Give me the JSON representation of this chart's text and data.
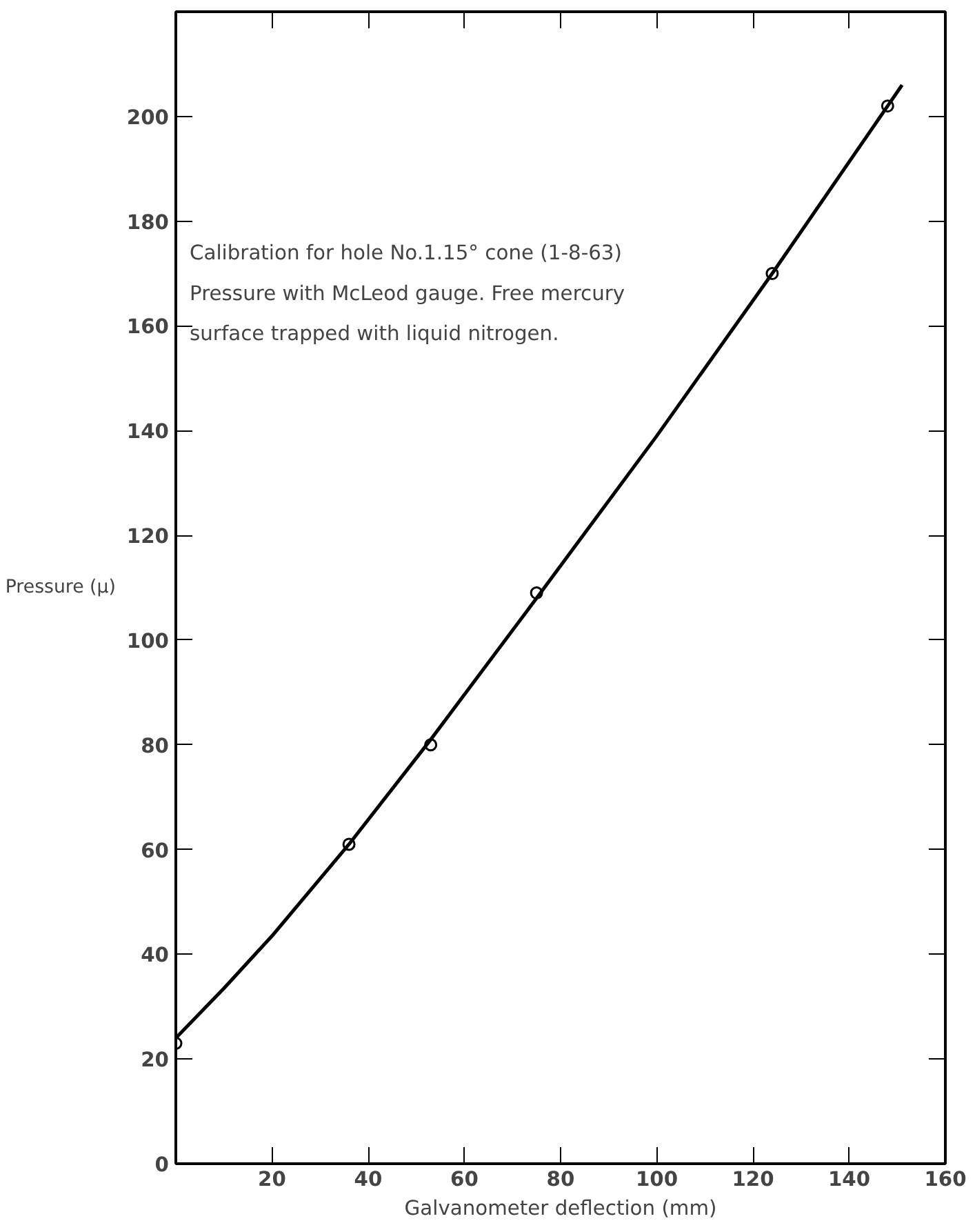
{
  "chart_data": {
    "type": "scatter",
    "xlabel": "Galvanometer deflection (mm)",
    "ylabel": "Pressure (μ)",
    "annotations": [
      "Calibration for hole No.1.15° cone (1-8-63)",
      "Pressure with McLeod gauge. Free mercury",
      "surface trapped with liquid nitrogen."
    ],
    "xlim": [
      0,
      160
    ],
    "ylim": [
      0,
      220
    ],
    "xticks": [
      20,
      40,
      60,
      80,
      100,
      120,
      140,
      160
    ],
    "yticks": [
      0,
      20,
      40,
      60,
      80,
      100,
      120,
      140,
      160,
      180,
      200
    ],
    "grid": false,
    "series": [
      {
        "marker": "circle",
        "color": "#000000",
        "x": [
          0,
          36,
          53,
          75,
          124,
          148
        ],
        "values": [
          23,
          61,
          80,
          109,
          170,
          202
        ]
      },
      {
        "type": "line",
        "marker": "none",
        "line_style": "solid",
        "color": "#000000",
        "x": [
          0,
          10,
          20,
          36,
          53,
          75,
          100,
          124,
          148,
          151
        ],
        "values": [
          24,
          33.5,
          43.5,
          61,
          81,
          108,
          139,
          170,
          202,
          206
        ]
      }
    ]
  }
}
